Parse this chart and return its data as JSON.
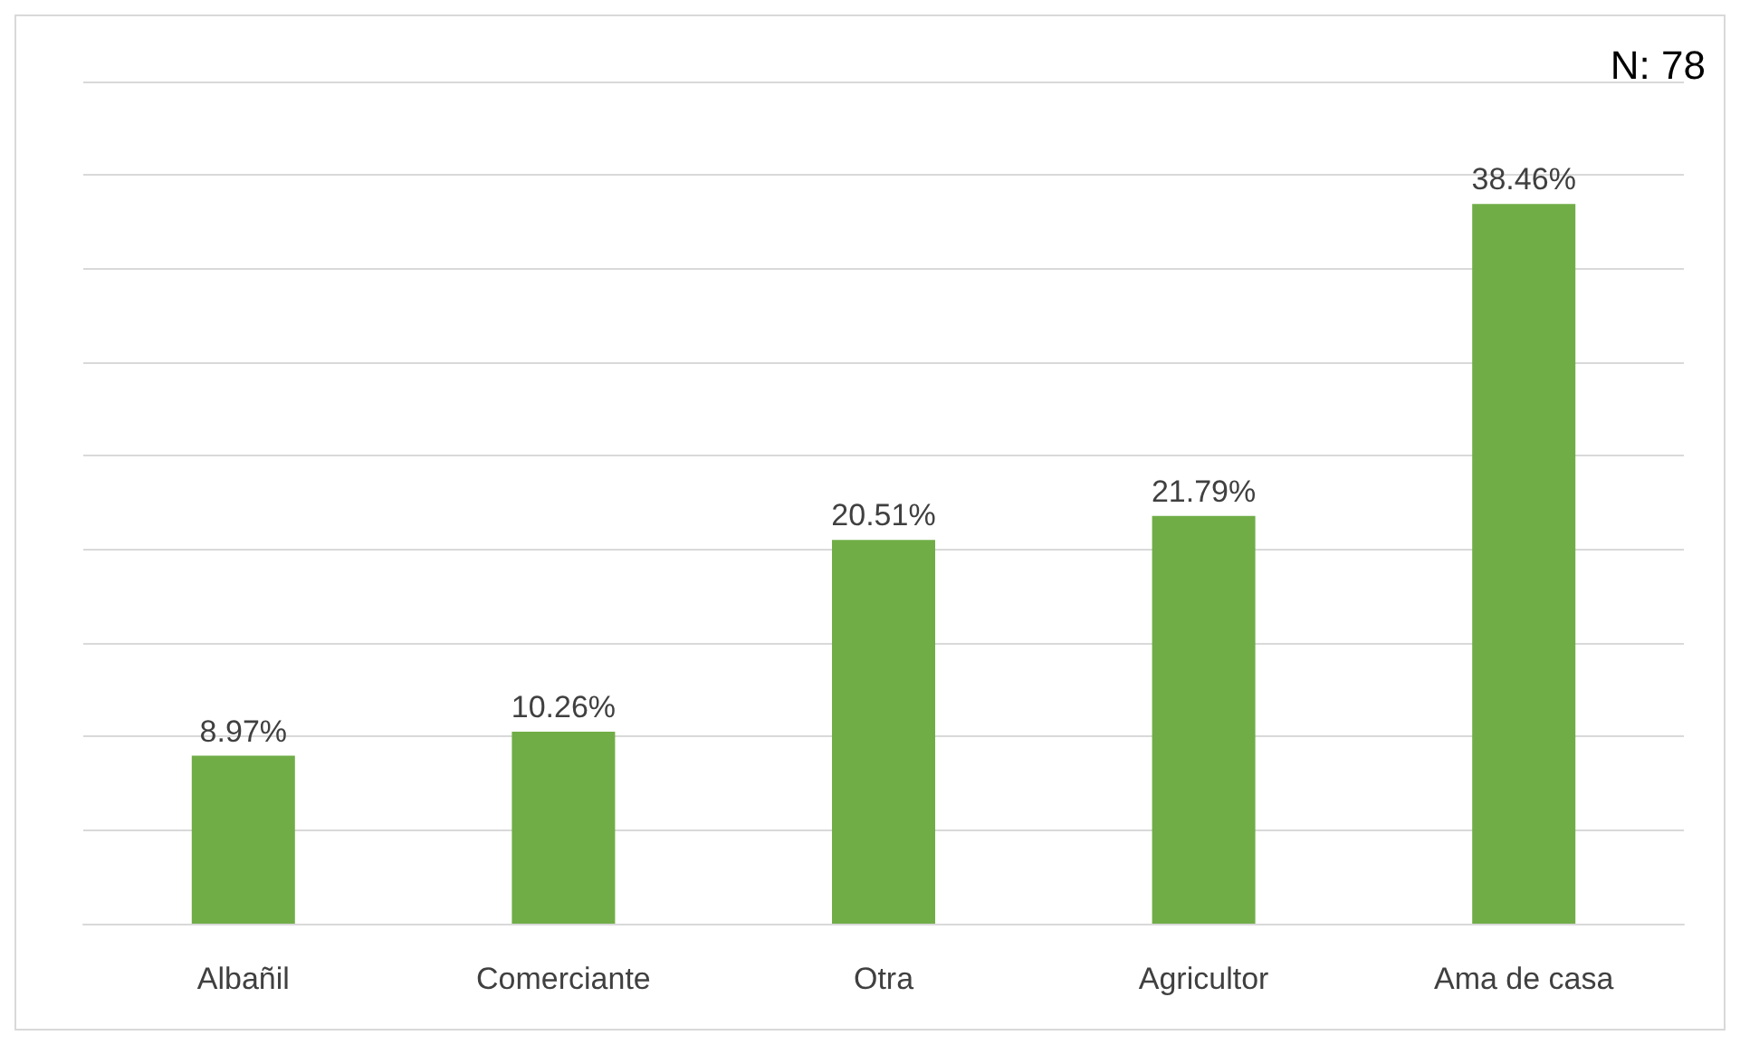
{
  "chart_data": {
    "type": "bar",
    "categories": [
      "Albañil",
      "Comerciante",
      "Otra",
      "Agricultor",
      "Ama de casa"
    ],
    "values": [
      8.97,
      10.26,
      20.51,
      21.79,
      38.46
    ],
    "value_labels": [
      "8.97%",
      "10.26%",
      "20.51%",
      "21.79%",
      "38.46%"
    ],
    "color": "#70ad47",
    "ylim": [
      0,
      45
    ],
    "yticks": [
      {
        "value": 0,
        "label": null
      },
      {
        "value": 5,
        "label": null
      },
      {
        "value": 10,
        "label": null
      },
      {
        "value": 15,
        "label": null
      },
      {
        "value": 20,
        "label": null
      },
      {
        "value": 25,
        "label": null
      },
      {
        "value": 30,
        "label": null
      },
      {
        "value": 35,
        "label": null
      },
      {
        "value": 40,
        "label": null
      },
      {
        "value": 45,
        "label": null
      }
    ],
    "grid": "y",
    "tick_labels": "x",
    "annotations": [
      "N: 78"
    ]
  }
}
